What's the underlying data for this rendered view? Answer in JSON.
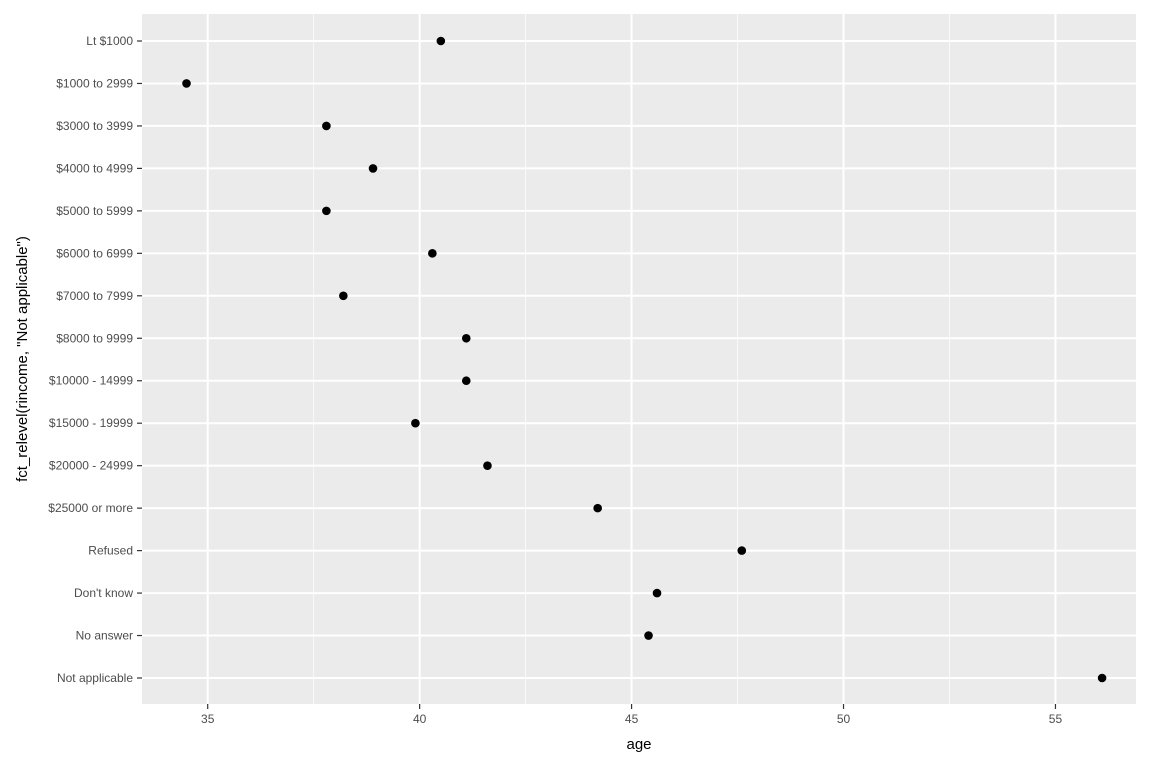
{
  "chart_data": {
    "type": "scatter",
    "xlabel": "age",
    "ylabel": "fct_relevel(rincome, \"Not applicable\")",
    "xlim": [
      33.45,
      56.9
    ],
    "xticks": [
      35,
      40,
      45,
      50,
      55
    ],
    "grid": true,
    "categories": [
      "Lt $1000",
      "$1000 to 2999",
      "$3000 to 3999",
      "$4000 to 4999",
      "$5000 to 5999",
      "$6000 to 6999",
      "$7000 to 7999",
      "$8000 to 9999",
      "$10000 - 14999",
      "$15000 - 19999",
      "$20000 - 24999",
      "$25000 or more",
      "Refused",
      "Don't know",
      "No answer",
      "Not applicable"
    ],
    "values": [
      40.5,
      34.5,
      37.8,
      38.9,
      37.8,
      40.3,
      38.2,
      41.1,
      41.1,
      39.9,
      41.6,
      44.2,
      47.6,
      45.6,
      45.4,
      56.1
    ],
    "colors": {
      "panel": "#ebebeb",
      "grid_major": "#ffffff",
      "point": "#000000"
    }
  }
}
